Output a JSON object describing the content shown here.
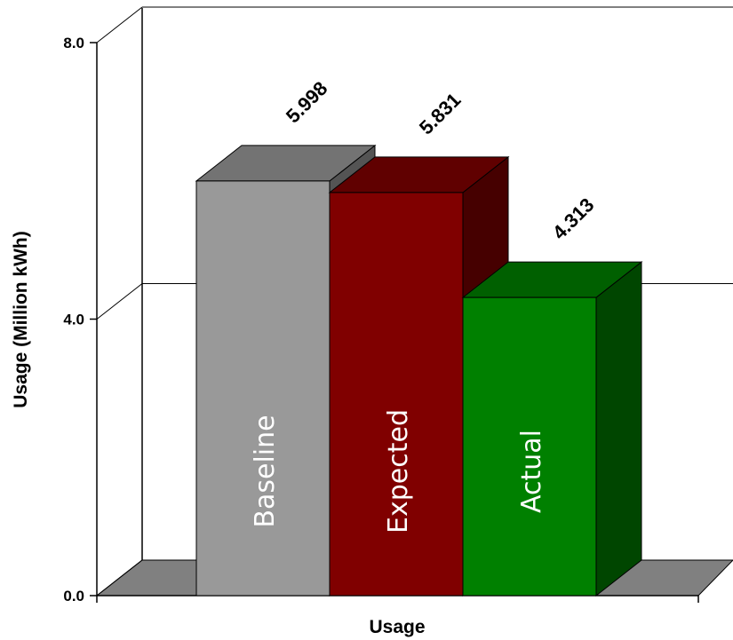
{
  "chart_data": {
    "type": "bar",
    "style": "3d",
    "categories": [
      "Baseline",
      "Expected",
      "Actual"
    ],
    "values": [
      5.998,
      5.831,
      4.313
    ],
    "value_labels": [
      "5.998",
      "5.831",
      "4.313"
    ],
    "bar_colors": [
      "#999999",
      "#800000",
      "#008000"
    ],
    "title": "",
    "xlabel": "Usage",
    "ylabel": "Usage (Million kWh)",
    "ylim": [
      0,
      8
    ],
    "yticks": [
      0,
      4,
      8
    ],
    "ytick_labels": [
      "0.0",
      "4.0",
      "8.0"
    ],
    "grid": true,
    "legend": "none"
  }
}
